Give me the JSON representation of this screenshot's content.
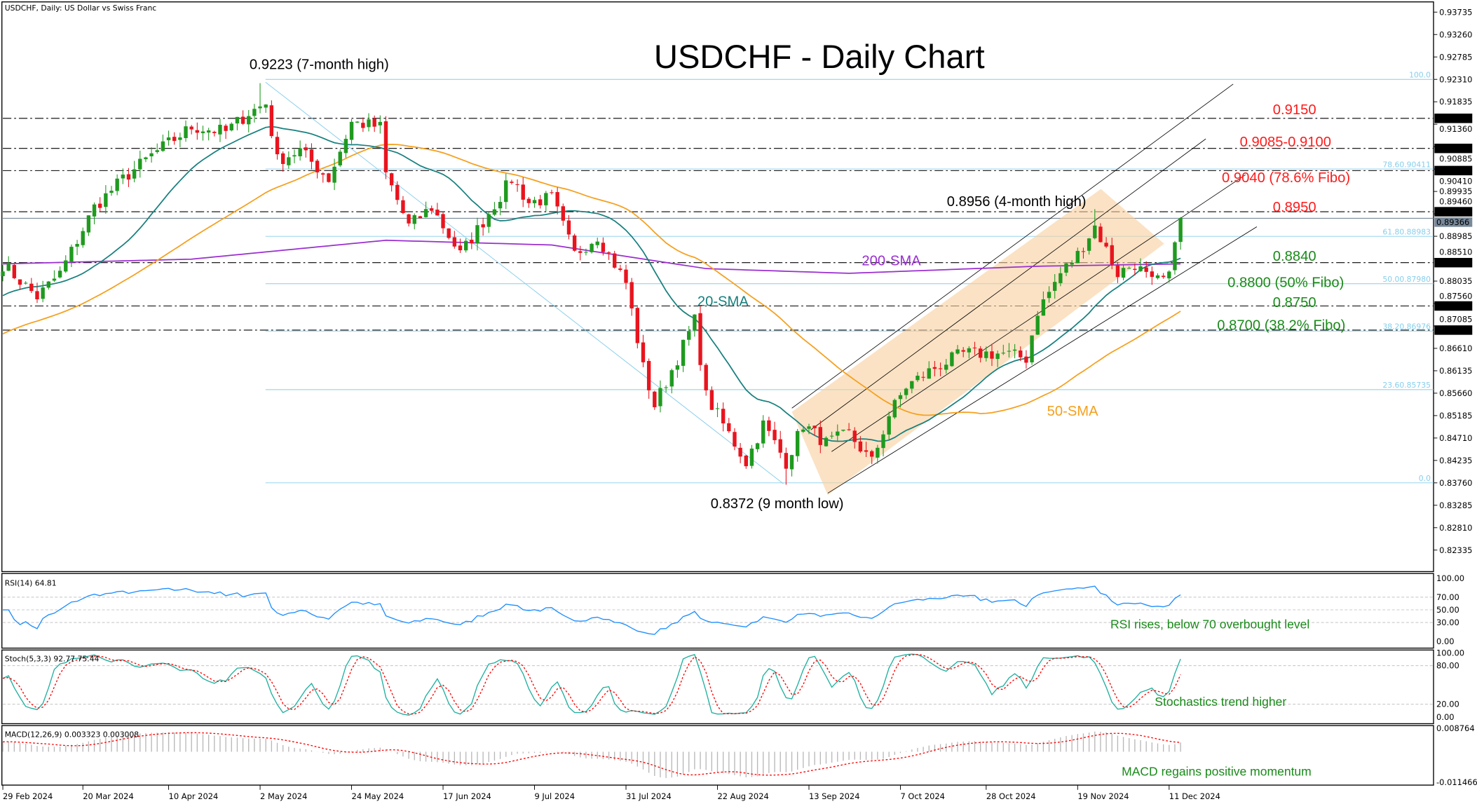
{
  "window": {
    "title": "USDCHF, Daily:  US Dollar vs Swiss Franc"
  },
  "chart_data": {
    "type": "candlestick",
    "title": "USDCHF - Daily Chart",
    "symbol": "USDCHF",
    "timeframe": "Daily",
    "ylim": [
      0.82,
      0.939
    ],
    "y_ticks": [
      "0.93735",
      "0.93260",
      "0.92785",
      "0.92310",
      "0.91835",
      "0.91360",
      "0.90885",
      "0.90410",
      "0.89935",
      "0.89460",
      "0.88985",
      "0.88510",
      "0.88035",
      "0.87560",
      "0.87085",
      "0.86610",
      "0.86135",
      "0.85660",
      "0.85185",
      "0.84710",
      "0.84235",
      "0.83760",
      "0.83285",
      "0.82810",
      "0.82335"
    ],
    "x_ticks": [
      {
        "date": "2024-02-29",
        "label": "29 Feb 2024"
      },
      {
        "date": "2024-03-20",
        "label": "20 Mar 2024"
      },
      {
        "date": "2024-04-10",
        "label": "10 Apr 2024"
      },
      {
        "date": "2024-05-02",
        "label": "2 May 2024"
      },
      {
        "date": "2024-05-24",
        "label": "24 May 2024"
      },
      {
        "date": "2024-06-17",
        "label": "17 Jun 2024"
      },
      {
        "date": "2024-07-09",
        "label": "9 Jul 2024"
      },
      {
        "date": "2024-07-31",
        "label": "31 Jul 2024"
      },
      {
        "date": "2024-08-22",
        "label": "22 Aug 2024"
      },
      {
        "date": "2024-09-13",
        "label": "13 Sep 2024"
      },
      {
        "date": "2024-10-07",
        "label": "7 Oct 2024"
      },
      {
        "date": "2024-10-28",
        "label": "28 Oct 2024"
      },
      {
        "date": "2024-11-19",
        "label": "19 Nov 2024"
      },
      {
        "date": "2024-12-11",
        "label": "11 Dec 2024"
      }
    ],
    "close_path_approx": [
      [
        "2024-02-29",
        0.8839
      ],
      [
        "2024-03-08",
        0.877
      ],
      [
        "2024-03-14",
        0.882
      ],
      [
        "2024-03-22",
        0.896
      ],
      [
        "2024-03-29",
        0.902
      ],
      [
        "2024-04-05",
        0.907
      ],
      [
        "2024-04-16",
        0.913
      ],
      [
        "2024-04-24",
        0.912
      ],
      [
        "2024-04-30",
        0.916
      ],
      [
        "2024-05-03",
        0.918
      ],
      [
        "2024-05-07",
        0.906
      ],
      [
        "2024-05-13",
        0.908
      ],
      [
        "2024-05-20",
        0.902
      ],
      [
        "2024-05-24",
        0.914
      ],
      [
        "2024-05-31",
        0.913
      ],
      [
        "2024-06-03",
        0.903
      ],
      [
        "2024-06-07",
        0.892
      ],
      [
        "2024-06-13",
        0.896
      ],
      [
        "2024-06-20",
        0.886
      ],
      [
        "2024-06-26",
        0.893
      ],
      [
        "2024-07-03",
        0.902
      ],
      [
        "2024-07-08",
        0.897
      ],
      [
        "2024-07-12",
        0.898
      ],
      [
        "2024-07-18",
        0.886
      ],
      [
        "2024-07-24",
        0.89
      ],
      [
        "2024-07-31",
        0.88
      ],
      [
        "2024-08-05",
        0.862
      ],
      [
        "2024-08-07",
        0.854
      ],
      [
        "2024-08-13",
        0.864
      ],
      [
        "2024-08-16",
        0.872
      ],
      [
        "2024-08-20",
        0.856
      ],
      [
        "2024-08-26",
        0.848
      ],
      [
        "2024-08-29",
        0.842
      ],
      [
        "2024-09-03",
        0.85
      ],
      [
        "2024-09-09",
        0.842
      ],
      [
        "2024-09-12",
        0.85
      ],
      [
        "2024-09-18",
        0.846
      ],
      [
        "2024-09-24",
        0.848
      ],
      [
        "2024-09-30",
        0.842
      ],
      [
        "2024-10-03",
        0.852
      ],
      [
        "2024-10-08",
        0.858
      ],
      [
        "2024-10-15",
        0.862
      ],
      [
        "2024-10-22",
        0.865
      ],
      [
        "2024-10-31",
        0.865
      ],
      [
        "2024-11-06",
        0.864
      ],
      [
        "2024-11-08",
        0.874
      ],
      [
        "2024-11-14",
        0.882
      ],
      [
        "2024-11-19",
        0.886
      ],
      [
        "2024-11-22",
        0.892
      ],
      [
        "2024-11-28",
        0.882
      ],
      [
        "2024-12-03",
        0.884
      ],
      [
        "2024-12-06",
        0.88
      ],
      [
        "2024-12-11",
        0.881
      ],
      [
        "2024-12-12",
        0.89
      ],
      [
        "2024-12-13",
        0.8937
      ]
    ],
    "extremes": [
      {
        "date": "2024-05-02",
        "high": 0.9223
      },
      {
        "date": "2024-09-09",
        "low": 0.8372
      },
      {
        "date": "2024-11-22",
        "high": 0.8956
      }
    ],
    "sma200_path_approx": [
      [
        "2024-02-29",
        0.884
      ],
      [
        "2024-04-16",
        0.885
      ],
      [
        "2024-06-03",
        0.889
      ],
      [
        "2024-07-12",
        0.888
      ],
      [
        "2024-08-20",
        0.883
      ],
      [
        "2024-09-24",
        0.882
      ],
      [
        "2024-11-08",
        0.8835
      ],
      [
        "2024-12-13",
        0.884
      ]
    ],
    "key_levels": [
      "0.91484",
      "0.90847",
      "0.90377",
      "0.89505",
      "0.88426",
      "0.87508",
      "0.86997"
    ],
    "current_price": "0.89366",
    "fibonacci": [
      {
        "label": "100.0",
        "value": 0.9231
      },
      {
        "label": "78.60.90411",
        "value": 0.90411
      },
      {
        "label": "61.80.88983",
        "value": 0.88983
      },
      {
        "label": "50.00.87980",
        "value": 0.8798
      },
      {
        "label": "38.20.86976",
        "value": 0.86976
      },
      {
        "label": "23.60.85735",
        "value": 0.85735
      },
      {
        "label": "0.0",
        "value": 0.8376
      }
    ],
    "annotations": {
      "high": "0.9223 (7-month high)",
      "low": "0.8372 (9 month low)",
      "high4": "0.8956 (4-month high)",
      "r1": "0.9150",
      "r2": "0.9085-0.9100",
      "r3": "0.9040 (78.6% Fibo)",
      "r4": "0.8950",
      "s1": "0.8840",
      "s2": "0.8800 (50% Fibo)",
      "s3": "0.8750",
      "s4": "0.8700 (38.2% Fibo)",
      "sma200": "200-SMA",
      "sma20": "20-SMA",
      "sma50": "50-SMA"
    },
    "colors": {
      "bull": "#1f9a1f",
      "bear": "#e8141e",
      "sma20": "#17807e",
      "sma50": "#f5a01e",
      "sma200": "#9a2fd0",
      "fibo": "#87ceeb",
      "channel_fill": "#f8cf9c",
      "support": "#1a8a1a",
      "resistance": "#ff1a1a",
      "rsi": "#1e8fff",
      "stoch_main": "#20b0a0",
      "stoch_signal": "#ff0000",
      "macd_hist": "#b8b8b8"
    },
    "indicators": {
      "rsi": {
        "label": "RSI(14) 64.81",
        "levels": [
          "100.00",
          "70.00",
          "50.00",
          "30.00",
          "0.00"
        ],
        "note": "RSI rises, below 70 overbought level"
      },
      "stoch": {
        "label": "Stoch(5,3,3) 92.77 75.44",
        "levels": [
          "100.00",
          "80.00",
          "20.00",
          "0.00"
        ],
        "note": "Stochastics trend higher"
      },
      "macd": {
        "label": "MACD(12,26,9) 0.003323 0.003008",
        "levels": [
          "0.008764",
          "-0.011466"
        ],
        "note": "MACD regains positive momentum"
      }
    }
  }
}
